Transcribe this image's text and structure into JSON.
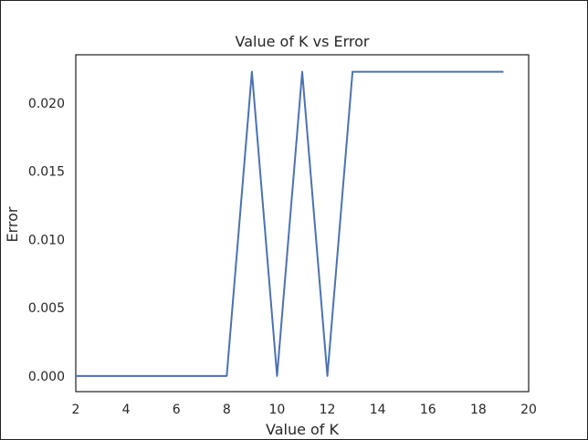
{
  "chart_data": {
    "type": "line",
    "title": "Value of K vs Error",
    "xlabel": "Value of K",
    "ylabel": "Error",
    "xlim": [
      2,
      20
    ],
    "ylim": [
      -0.00115,
      0.02355
    ],
    "xticks": [
      2,
      4,
      6,
      8,
      10,
      12,
      14,
      16,
      18,
      20
    ],
    "yticks": [
      0.0,
      0.005,
      0.01,
      0.015,
      0.02
    ],
    "ytick_labels": [
      "0.000",
      "0.005",
      "0.010",
      "0.015",
      "0.020"
    ],
    "grid": false,
    "series": [
      {
        "color": "#4c72b0",
        "x": [
          2,
          3,
          4,
          5,
          6,
          7,
          8,
          9,
          10,
          11,
          12,
          13,
          14,
          15,
          16,
          17,
          18,
          19
        ],
        "y": [
          0,
          0,
          0,
          0,
          0,
          0,
          0,
          0.0223,
          0,
          0.0223,
          0,
          0.0223,
          0.0223,
          0.0223,
          0.0223,
          0.0223,
          0.0223,
          0.0223
        ]
      }
    ]
  }
}
